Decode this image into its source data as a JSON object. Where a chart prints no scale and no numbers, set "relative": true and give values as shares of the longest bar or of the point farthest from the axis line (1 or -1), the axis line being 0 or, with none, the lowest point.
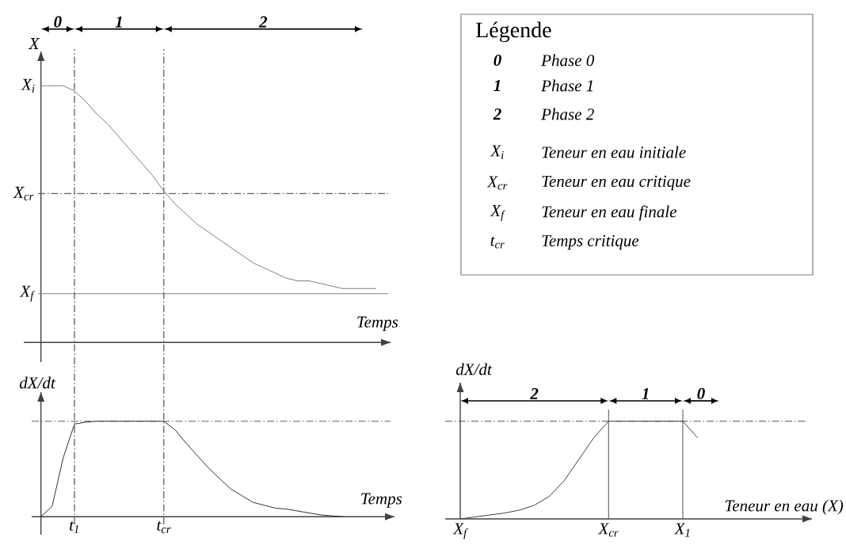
{
  "chart_data": [
    {
      "type": "line",
      "relative": true,
      "xlabel": "Temps",
      "ylabel": "X",
      "color": "#808080",
      "tick_labels": false,
      "categories": [
        null,
        null,
        null,
        "t$_{1}$",
        null,
        null,
        null,
        null,
        null,
        null,
        null,
        "t$_{cr}$",
        null,
        null,
        null,
        null,
        null,
        null,
        null,
        null,
        null,
        null,
        null,
        null,
        null,
        null,
        null,
        null,
        null,
        null,
        null
      ],
      "values": [
        1,
        1,
        1,
        0.98,
        0.94,
        0.89,
        0.85,
        0.8,
        0.75,
        0.7,
        0.65,
        0.59,
        0.54,
        0.5,
        0.46,
        0.43,
        0.4,
        0.37,
        0.34,
        0.31,
        0.29,
        0.27,
        0.25,
        0.24,
        0.24,
        0.23,
        0.22,
        0.21,
        0.21,
        0.21,
        0.21
      ],
      "ref_lines": [
        {
          "axis": "y",
          "value": 0.58,
          "label": "X$_{cr}$",
          "line_style": "dashdot",
          "color": "#606060"
        },
        {
          "axis": "y",
          "value": 0.19,
          "label": "X$_{f}$",
          "line_style": "solid",
          "color": "#808080"
        },
        {
          "axis": "x",
          "value": "t$_{1}$",
          "line_style": "dashdot",
          "color": "#404040"
        },
        {
          "axis": "x",
          "value": "t$_{cr}$",
          "line_style": "dashdot",
          "color": "#404040"
        }
      ],
      "annotations": [
        "X$_{i}$",
        "0",
        "1",
        "2"
      ]
    },
    {
      "type": "other",
      "title": "Légende",
      "annotations": [
        "0",
        "Phase 0",
        "1",
        "Phase 1",
        "2",
        "Phase 2",
        "X$_{i}$",
        "Teneur en eau initiale",
        "X$_{cr}$",
        "Teneur en eau critique",
        "X$_{f}$",
        "Teneur en eau finale",
        "t$_{cr}$",
        "Temps critique"
      ]
    },
    {
      "type": "line",
      "relative": true,
      "xlabel": "Temps",
      "ylabel": "dX/dt",
      "color": "#303030",
      "tick_labels": "x",
      "categories": [
        null,
        null,
        null,
        "t$_{1}$",
        null,
        null,
        null,
        null,
        null,
        null,
        null,
        "t$_{cr}$",
        null,
        null,
        null,
        null,
        null,
        null,
        null,
        null,
        null,
        null,
        null,
        null,
        null,
        null,
        null,
        null,
        null,
        null,
        null
      ],
      "values": [
        0,
        0.11,
        0.62,
        0.97,
        0.99,
        1,
        1,
        1,
        1,
        1,
        1,
        1,
        0.91,
        0.77,
        0.64,
        0.51,
        0.4,
        0.29,
        0.22,
        0.15,
        0.12,
        0.09,
        0.08,
        0.06,
        0.04,
        0.02,
        0.01,
        0,
        null,
        null,
        null
      ],
      "ref_lines": [
        {
          "axis": "y",
          "value": 1,
          "line_style": "dashdot",
          "color": "#606060"
        },
        {
          "axis": "x",
          "value": "t$_{1}$",
          "line_style": "dashdot",
          "color": "#404040"
        },
        {
          "axis": "x",
          "value": "t$_{cr}$",
          "line_style": "dashdot",
          "color": "#404040"
        }
      ]
    },
    {
      "type": "line",
      "relative": true,
      "xlabel": "Teneur en eau (X)",
      "ylabel": "dX/dt",
      "color": "#404040",
      "tick_labels": "x",
      "categories": [
        "X$_{f}$",
        null,
        null,
        null,
        null,
        null,
        null,
        null,
        null,
        null,
        "X$_{cr}$",
        null,
        null,
        null,
        null,
        "X$_{1}$",
        null
      ],
      "values": [
        0,
        0.02,
        0.04,
        0.06,
        0.09,
        0.14,
        0.23,
        0.39,
        0.61,
        0.83,
        1,
        1,
        1,
        1,
        1,
        1,
        0.83
      ],
      "ref_lines": [
        {
          "axis": "y",
          "value": 1,
          "line_style": "dashdot",
          "color": "#505050"
        },
        {
          "axis": "x",
          "value": "X$_{cr}$",
          "line_style": "solid",
          "color": "#606060"
        },
        {
          "axis": "x",
          "value": "X$_{1}$",
          "line_style": "solid",
          "color": "#606060"
        }
      ],
      "annotations": [
        "2",
        "1",
        "0"
      ]
    }
  ]
}
